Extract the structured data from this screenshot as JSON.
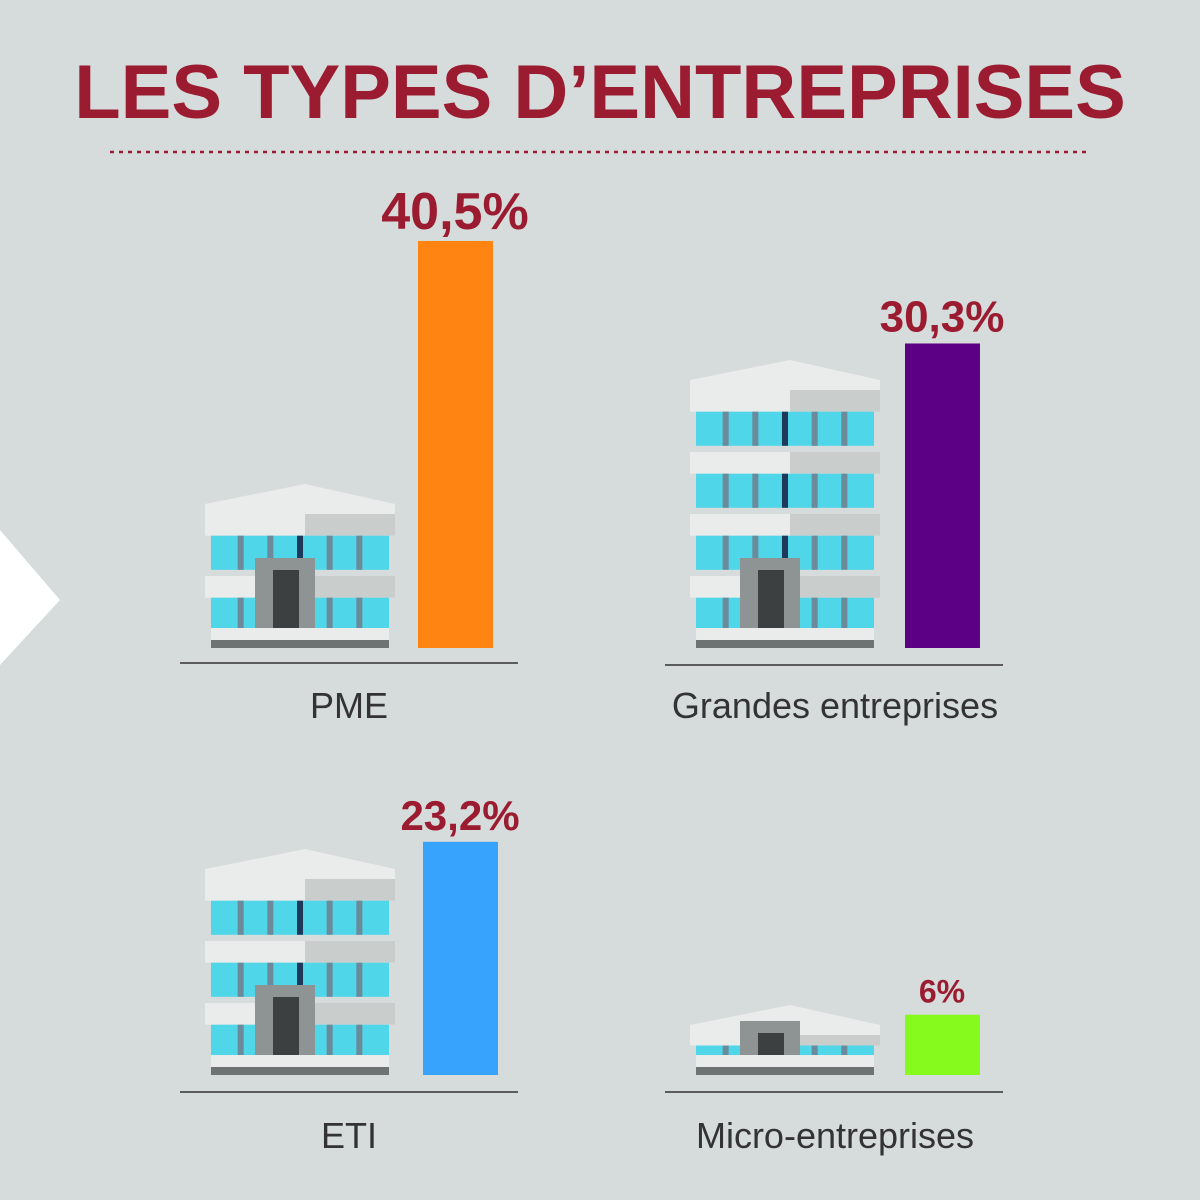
{
  "chart_data": {
    "type": "bar",
    "title": "LES TYPES D’ENTREPRISES",
    "categories": [
      "PME",
      "Grandes entreprises",
      "ETI",
      "Micro-entreprises"
    ],
    "values": [
      40.5,
      30.3,
      23.2,
      6
    ],
    "value_labels": [
      "40,5%",
      "30,3%",
      "23,2%",
      "6%"
    ],
    "colors": [
      "#ff8412",
      "#5c0086",
      "#38a3fc",
      "#86f91d"
    ]
  }
}
